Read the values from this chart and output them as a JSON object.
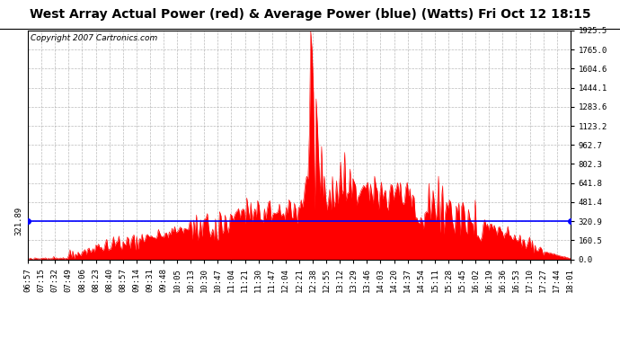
{
  "title": "West Array Actual Power (red) & Average Power (blue) (Watts) Fri Oct 12 18:15",
  "copyright": "Copyright 2007 Cartronics.com",
  "average_power": 321.89,
  "y_max": 1925.5,
  "y_min": 0.0,
  "y_ticks": [
    0.0,
    160.5,
    320.9,
    481.4,
    641.8,
    802.3,
    962.7,
    1123.2,
    1283.6,
    1444.1,
    1604.6,
    1765.0,
    1925.5
  ],
  "x_labels": [
    "06:57",
    "07:15",
    "07:32",
    "07:49",
    "08:06",
    "08:23",
    "08:40",
    "08:57",
    "09:14",
    "09:31",
    "09:48",
    "10:05",
    "10:13",
    "10:30",
    "10:47",
    "11:04",
    "11:21",
    "11:30",
    "11:47",
    "12:04",
    "12:21",
    "12:38",
    "12:55",
    "13:12",
    "13:29",
    "13:46",
    "14:03",
    "14:20",
    "14:37",
    "14:54",
    "15:11",
    "15:28",
    "15:45",
    "16:02",
    "16:19",
    "16:36",
    "16:53",
    "17:10",
    "17:27",
    "17:44",
    "18:01"
  ],
  "bar_color": "#FF0000",
  "line_color": "#0000FF",
  "background_color": "#FFFFFF",
  "grid_color": "#AAAAAA",
  "title_fontsize": 10,
  "copyright_fontsize": 6.5,
  "tick_fontsize": 6.5,
  "left_label_value": "321.89",
  "right_label_value": "321.89"
}
